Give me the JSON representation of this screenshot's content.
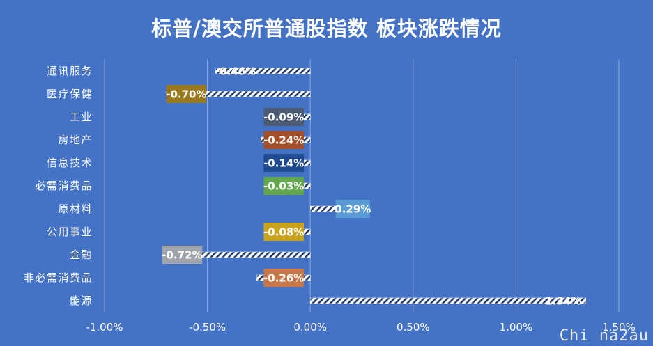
{
  "title": "标普/澳交所普通股指数 板块涨跌情况",
  "watermark": "Chi na2au",
  "colors": {
    "background": "#4472c4",
    "text": "#ffffff",
    "grid": "#8fa9dc"
  },
  "chart_data": {
    "type": "bar",
    "orientation": "horizontal",
    "title": "标普/澳交所普通股指数 板块涨跌情况",
    "categories": [
      "通讯服务",
      "医疗保健",
      "工业",
      "房地产",
      "信息技术",
      "必需消费品",
      "原材料",
      "公用事业",
      "金融",
      "非必需消费品",
      "能源"
    ],
    "values": [
      -0.46,
      -0.7,
      -0.09,
      -0.24,
      -0.14,
      -0.03,
      0.29,
      -0.08,
      -0.72,
      -0.26,
      1.34
    ],
    "data_labels": [
      "-0.46%",
      "-0.70%",
      "-0.09%",
      "-0.24%",
      "-0.14%",
      "-0.03%",
      "0.29%",
      "-0.08%",
      "-0.72%",
      "-0.26%",
      "1.34%"
    ],
    "label_colors": [
      null,
      "#9a7a1e",
      "#4c5a73",
      "#a3502a",
      "#1f4a90",
      "#62a64e",
      "#5b9bd5",
      "#c9a21e",
      "#9fa3aa",
      "#c7784a",
      null
    ],
    "xlim": [
      -1.0,
      1.5
    ],
    "xticks": [
      -1.0,
      -0.5,
      0.0,
      0.5,
      1.0,
      1.5
    ],
    "xtick_labels": [
      "-1.00%",
      "-0.50%",
      "0.00%",
      "0.50%",
      "1.00%",
      "1.50%"
    ],
    "grid": true,
    "bar_fill": "diagonal-hatch"
  }
}
